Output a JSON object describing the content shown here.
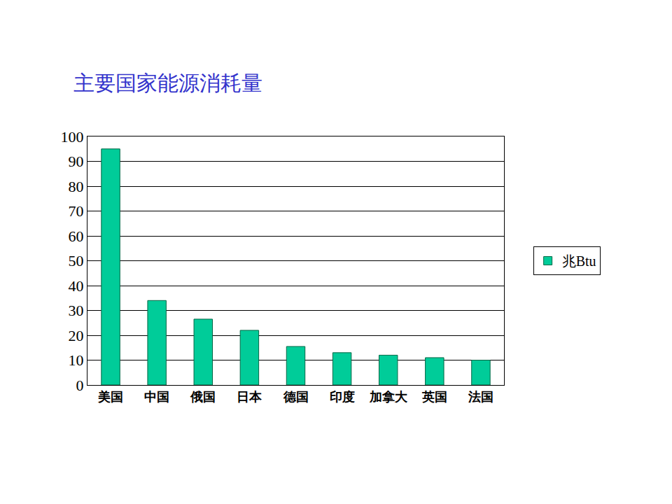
{
  "chart_data": {
    "type": "bar",
    "title": "主要国家能源消耗量",
    "categories": [
      "美国",
      "中国",
      "俄国",
      "日本",
      "德国",
      "印度",
      "加拿大",
      "英国",
      "法国"
    ],
    "series": [
      {
        "name": "兆Btu",
        "color": "#00cc99",
        "values": [
          95,
          34,
          26.5,
          22,
          15.5,
          13,
          12,
          11,
          10
        ]
      }
    ],
    "ylim": [
      0,
      100
    ],
    "yticks": [
      0,
      10,
      20,
      30,
      40,
      50,
      60,
      70,
      80,
      90,
      100
    ],
    "grid": true,
    "legend": "right"
  }
}
